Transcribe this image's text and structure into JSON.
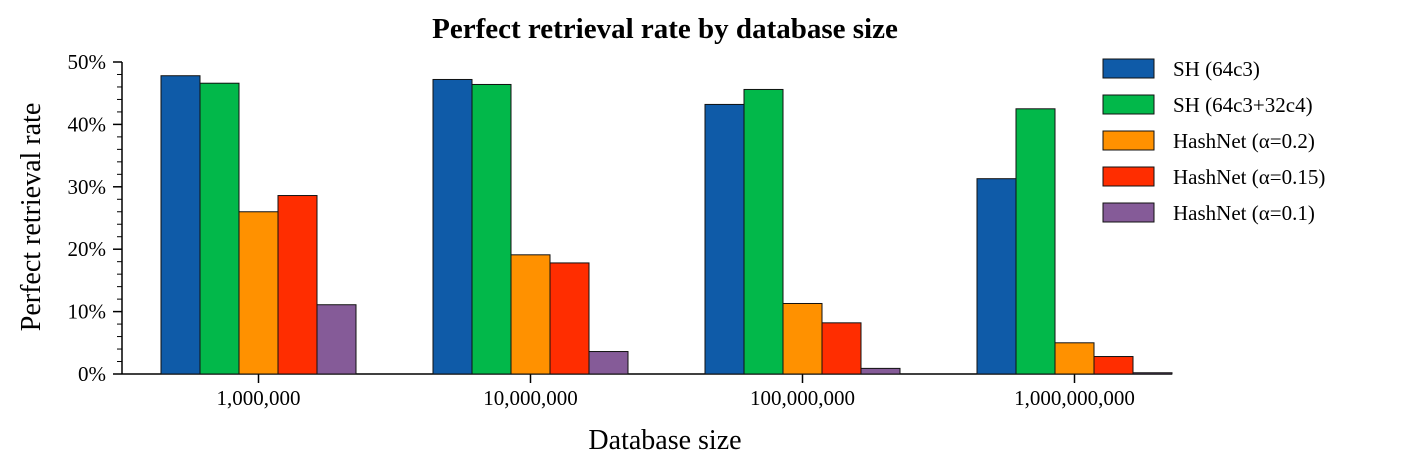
{
  "chart_data": {
    "type": "bar",
    "title": "Perfect retrieval rate by database size",
    "xlabel": "Database size",
    "ylabel": "Perfect retrieval rate",
    "categories": [
      "1,000,000",
      "10,000,000",
      "100,000,000",
      "1,000,000,000"
    ],
    "ylim": [
      0,
      50
    ],
    "yticks": [
      0,
      10,
      20,
      30,
      40,
      50
    ],
    "ytick_labels": [
      "0%",
      "10%",
      "20%",
      "30%",
      "40%",
      "50%"
    ],
    "grid": false,
    "legend_position": "top-right",
    "series": [
      {
        "name": "SH (64c3)",
        "color": "#0f5ba8",
        "values": [
          47.8,
          47.2,
          43.2,
          31.3
        ]
      },
      {
        "name": "SH (64c3+32c4)",
        "color": "#02b84a",
        "values": [
          46.6,
          46.4,
          45.6,
          42.5
        ]
      },
      {
        "name": "HashNet (α=0.2)",
        "color": "#ff9100",
        "values": [
          26.0,
          19.1,
          11.3,
          5.0
        ]
      },
      {
        "name": "HashNet (α=0.15)",
        "color": "#ff2d00",
        "values": [
          28.6,
          17.8,
          8.2,
          2.8
        ]
      },
      {
        "name": "HashNet (α=0.1)",
        "color": "#855b98",
        "values": [
          11.1,
          3.6,
          0.9,
          0.2
        ]
      }
    ]
  }
}
